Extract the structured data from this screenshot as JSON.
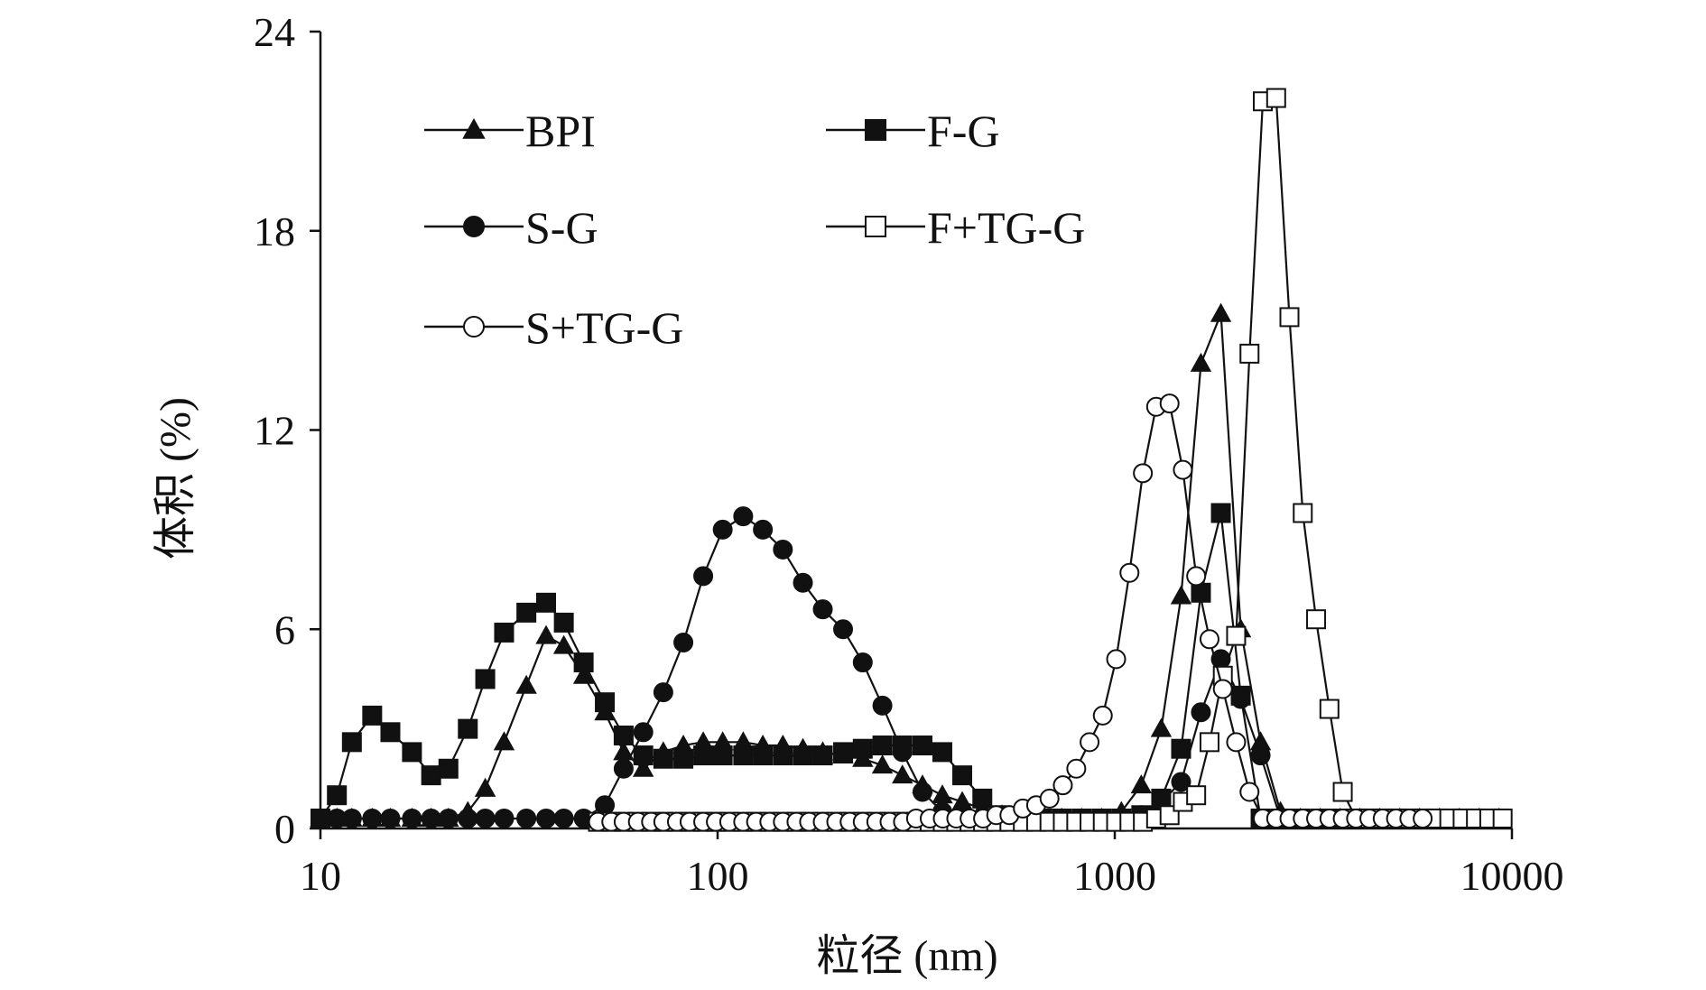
{
  "chart_data": {
    "type": "line",
    "xlabel": "粒径 (nm)",
    "ylabel": "体积 (%)",
    "x_scale": "log",
    "xlim": [
      10,
      10000
    ],
    "ylim": [
      0,
      24
    ],
    "x_ticks": [
      "10",
      "100",
      "1000",
      "10000"
    ],
    "y_ticks": [
      "0",
      "6",
      "12",
      "18",
      "24"
    ],
    "grid": false,
    "legend_position": "top-left",
    "series": [
      {
        "name": "BPI",
        "marker": "triangle-filled",
        "x": [
          10,
          11,
          12,
          13.5,
          15,
          17,
          19,
          21,
          23.5,
          26,
          29,
          33,
          37,
          41,
          46,
          52,
          58,
          65,
          73,
          82,
          92,
          103,
          116,
          130,
          146,
          164,
          184,
          207,
          232,
          260,
          292,
          328,
          368,
          413,
          464,
          520,
          584,
          655,
          735,
          825,
          926,
          1039,
          1166,
          1309,
          1469,
          1648,
          1850,
          2076,
          2329,
          2614,
          2933,
          3292,
          3694,
          4145,
          4651,
          5219,
          5857,
          6572,
          7375,
          8275,
          9286
        ],
        "y": [
          0.3,
          0.3,
          0.3,
          0.3,
          0.3,
          0.3,
          0.3,
          0.3,
          0.5,
          1.2,
          2.6,
          4.3,
          5.8,
          5.5,
          4.6,
          3.5,
          2.3,
          1.8,
          2.3,
          2.5,
          2.6,
          2.6,
          2.6,
          2.5,
          2.5,
          2.4,
          2.3,
          2.2,
          2.1,
          1.9,
          1.6,
          1.3,
          1.0,
          0.8,
          0.6,
          0.4,
          0.3,
          0.3,
          0.3,
          0.3,
          0.3,
          0.5,
          1.3,
          3.0,
          7.0,
          14.0,
          15.5,
          6.0,
          2.6,
          0.5,
          0.3,
          0.3,
          0.3,
          0.3,
          0.3,
          0.3,
          0.3,
          0.3,
          0.3,
          0.3,
          0.3
        ]
      },
      {
        "name": "F-G",
        "marker": "square-filled",
        "x": [
          10,
          11,
          12,
          13.5,
          15,
          17,
          19,
          21,
          23.5,
          26,
          29,
          33,
          37,
          41,
          46,
          52,
          58,
          65,
          73,
          82,
          92,
          103,
          116,
          130,
          146,
          164,
          184,
          207,
          232,
          260,
          292,
          328,
          368,
          413,
          464,
          520,
          584,
          655,
          735,
          825,
          926,
          1039,
          1166,
          1309,
          1469,
          1648,
          1850,
          2076,
          2329,
          2614,
          2933,
          3292,
          3694,
          4145,
          4651,
          5219,
          5857,
          6572,
          7375,
          8275,
          9286
        ],
        "y": [
          0.3,
          1.0,
          2.6,
          3.4,
          2.9,
          2.3,
          1.6,
          1.8,
          3.0,
          4.5,
          5.9,
          6.5,
          6.8,
          6.2,
          5.0,
          3.8,
          2.8,
          2.2,
          2.1,
          2.1,
          2.2,
          2.2,
          2.2,
          2.2,
          2.2,
          2.2,
          2.2,
          2.3,
          2.4,
          2.5,
          2.5,
          2.5,
          2.3,
          1.6,
          0.9,
          0.4,
          0.3,
          0.3,
          0.3,
          0.3,
          0.3,
          0.3,
          0.4,
          0.9,
          2.4,
          7.1,
          9.5,
          4.0,
          0.3,
          0.3,
          0.3,
          0.3,
          0.3,
          0.3,
          0.3,
          0.3,
          0.3,
          0.3,
          0.3,
          0.3,
          0.3
        ]
      },
      {
        "name": "S-G",
        "marker": "circle-filled",
        "x": [
          10,
          11,
          12,
          13.5,
          15,
          17,
          19,
          21,
          23.5,
          26,
          29,
          33,
          37,
          41,
          46,
          52,
          58,
          65,
          73,
          82,
          92,
          103,
          116,
          130,
          146,
          164,
          184,
          207,
          232,
          260,
          292,
          328,
          368,
          413,
          464,
          520,
          584,
          655,
          735,
          825,
          926,
          1039,
          1166,
          1309,
          1469,
          1648,
          1850,
          2076,
          2329,
          2614,
          2933,
          3292,
          3694,
          4145,
          4651,
          5219,
          5857,
          6572,
          7375,
          8275,
          9286
        ],
        "y": [
          0.3,
          0.3,
          0.3,
          0.3,
          0.3,
          0.3,
          0.3,
          0.3,
          0.3,
          0.3,
          0.3,
          0.3,
          0.3,
          0.3,
          0.3,
          0.7,
          1.8,
          2.9,
          4.1,
          5.6,
          7.6,
          9.0,
          9.4,
          9.0,
          8.4,
          7.4,
          6.6,
          6.0,
          5.0,
          3.7,
          2.3,
          1.1,
          0.5,
          0.3,
          0.3,
          0.3,
          0.3,
          0.3,
          0.3,
          0.3,
          0.3,
          0.3,
          0.4,
          0.8,
          1.4,
          3.5,
          5.1,
          3.9,
          2.2,
          0.3,
          0.3,
          0.3,
          0.3,
          0.3,
          0.3,
          0.3,
          0.3,
          0.3,
          0.3,
          0.3,
          0.3
        ]
      },
      {
        "name": "F+TG-G",
        "marker": "square-open",
        "x": [
          50,
          54,
          58,
          63,
          68,
          73,
          79,
          85,
          92,
          99,
          107,
          116,
          125,
          135,
          146,
          158,
          170,
          184,
          199,
          215,
          232,
          251,
          271,
          293,
          316,
          342,
          369,
          399,
          431,
          466,
          503,
          543,
          587,
          634,
          685,
          740,
          800,
          864,
          933,
          1008,
          1089,
          1177,
          1271,
          1374,
          1484,
          1603,
          1732,
          1871,
          2021,
          2184,
          2359,
          2549,
          2753,
          2974,
          3213,
          3471,
          3750,
          4051,
          4376,
          4727,
          5107,
          5517,
          5960,
          6439,
          6956,
          7515,
          8118,
          8770,
          9474
        ],
        "y": [
          0.2,
          0.2,
          0.2,
          0.2,
          0.2,
          0.2,
          0.2,
          0.2,
          0.2,
          0.2,
          0.2,
          0.2,
          0.2,
          0.2,
          0.2,
          0.2,
          0.2,
          0.2,
          0.2,
          0.2,
          0.2,
          0.2,
          0.2,
          0.2,
          0.2,
          0.2,
          0.2,
          0.2,
          0.2,
          0.2,
          0.2,
          0.2,
          0.2,
          0.2,
          0.2,
          0.2,
          0.2,
          0.2,
          0.2,
          0.2,
          0.2,
          0.2,
          0.3,
          0.4,
          0.8,
          1.0,
          2.6,
          4.6,
          5.8,
          14.3,
          21.9,
          22.0,
          15.4,
          9.5,
          6.3,
          3.6,
          1.1,
          0.3,
          0.3,
          0.3,
          0.3,
          0.3,
          0.3,
          0.3,
          0.3,
          0.3,
          0.3,
          0.3,
          0.3
        ]
      },
      {
        "name": "S+TG-G",
        "marker": "circle-open",
        "x": [
          50,
          54,
          58,
          63,
          68,
          73,
          79,
          85,
          92,
          99,
          107,
          116,
          125,
          135,
          146,
          158,
          170,
          184,
          199,
          215,
          232,
          251,
          271,
          293,
          316,
          342,
          369,
          399,
          431,
          466,
          503,
          543,
          587,
          634,
          685,
          740,
          800,
          864,
          933,
          1008,
          1089,
          1177,
          1271,
          1374,
          1484,
          1603,
          1732,
          1871,
          2021,
          2184,
          2359,
          2549,
          2753,
          2974,
          3213,
          3471,
          3750,
          4051,
          4376,
          4727,
          5107,
          5517,
          5960
        ],
        "y": [
          0.2,
          0.2,
          0.2,
          0.2,
          0.2,
          0.2,
          0.2,
          0.2,
          0.2,
          0.2,
          0.2,
          0.2,
          0.2,
          0.2,
          0.2,
          0.2,
          0.2,
          0.2,
          0.2,
          0.2,
          0.2,
          0.2,
          0.2,
          0.2,
          0.3,
          0.3,
          0.3,
          0.3,
          0.3,
          0.3,
          0.4,
          0.4,
          0.6,
          0.7,
          0.9,
          1.3,
          1.8,
          2.6,
          3.4,
          5.1,
          7.7,
          10.7,
          12.7,
          12.8,
          10.8,
          7.6,
          5.7,
          4.2,
          2.6,
          1.1,
          0.3,
          0.3,
          0.3,
          0.3,
          0.3,
          0.3,
          0.3,
          0.3,
          0.3,
          0.3,
          0.3,
          0.3,
          0.3
        ]
      }
    ]
  }
}
